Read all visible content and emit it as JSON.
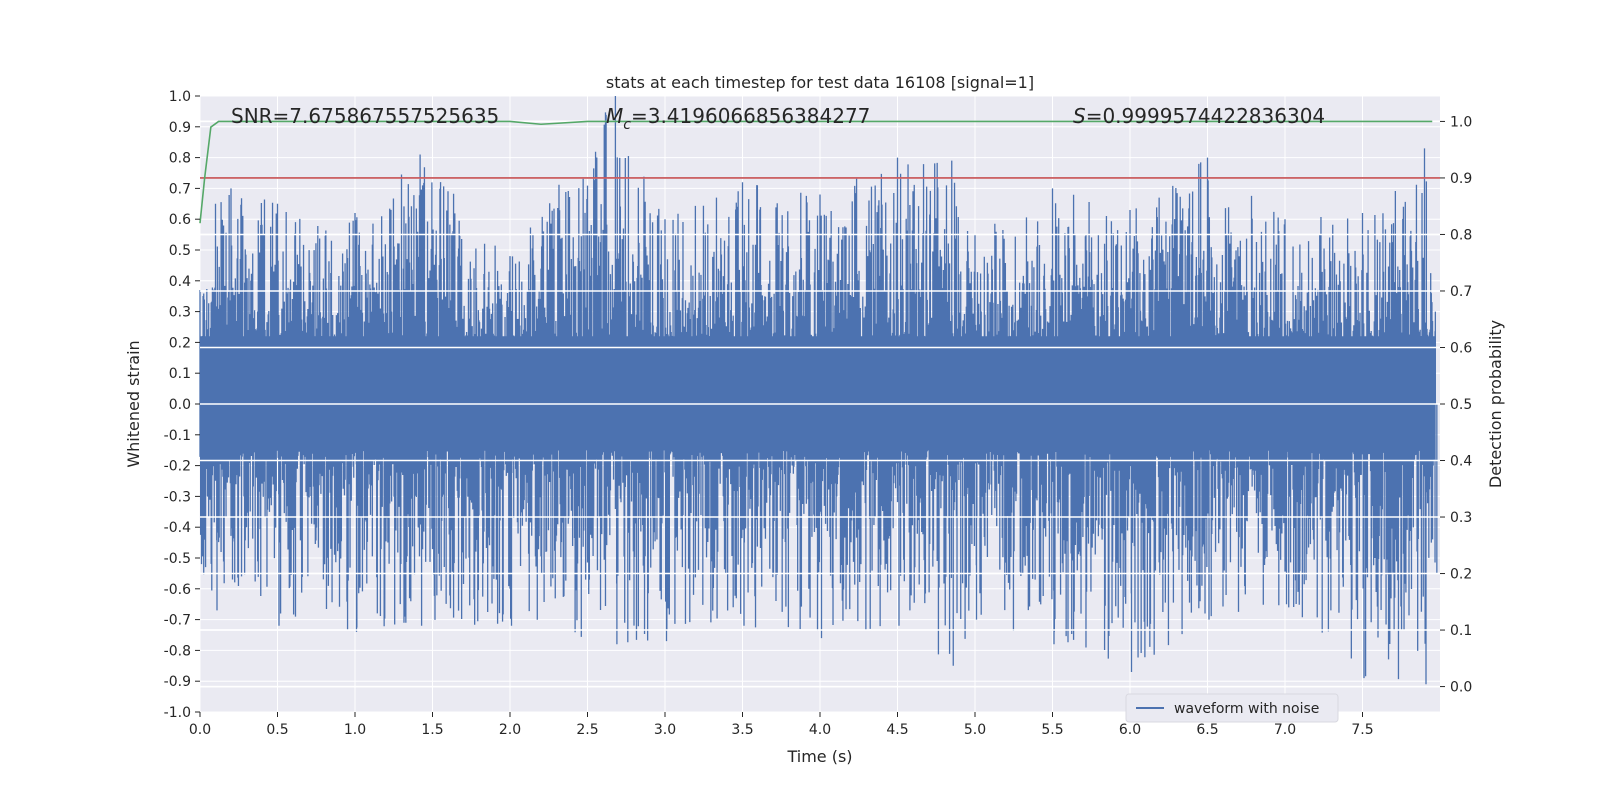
{
  "chart_data": {
    "type": "line",
    "title": "stats at each timestep for test data 16108 [signal=1]",
    "xlabel": "Time (s)",
    "ylabel": "Whitened strain",
    "y2label": "Detection probability",
    "xlim": [
      0.0,
      8.0
    ],
    "ylim": [
      -1.0,
      1.0
    ],
    "y2lim": [
      -0.045,
      1.045
    ],
    "grid": true,
    "legend_position": "lower-right",
    "x_ticks": [
      "0.0",
      "0.5",
      "1.0",
      "1.5",
      "2.0",
      "2.5",
      "3.0",
      "3.5",
      "4.0",
      "4.5",
      "5.0",
      "5.5",
      "6.0",
      "6.5",
      "7.0",
      "7.5"
    ],
    "y_ticks": [
      "1.0",
      "0.9",
      "0.8",
      "0.7",
      "0.6",
      "0.5",
      "0.4",
      "0.3",
      "0.2",
      "0.1",
      "0.0",
      "-0.1",
      "-0.2",
      "-0.3",
      "-0.4",
      "-0.5",
      "-0.6",
      "-0.7",
      "-0.8",
      "-0.9",
      "-1.0"
    ],
    "y2_ticks": [
      "1.0",
      "0.9",
      "0.8",
      "0.7",
      "0.6",
      "0.5",
      "0.4",
      "0.3",
      "0.2",
      "0.1",
      "0.0"
    ],
    "annotations": {
      "snr": "SNR=7.675867557525635",
      "mc_symbol": "M",
      "mc_sub": "c",
      "mc_value": "=3.4196066856384277",
      "s_symbol": "S",
      "s_value": "=0.9999574422836304"
    },
    "series": [
      {
        "name": "waveform with noise",
        "axis": "left",
        "color": "#4c72b0",
        "envelope_description_points": {
          "x": [
            0.0,
            0.1,
            0.2,
            0.5,
            1.0,
            1.42,
            2.0,
            2.68,
            3.0,
            3.5,
            4.0,
            4.5,
            4.85,
            5.0,
            5.5,
            6.0,
            6.5,
            7.0,
            7.5,
            7.9,
            7.97
          ],
          "max": [
            0.37,
            0.65,
            0.7,
            0.65,
            0.62,
            0.81,
            0.48,
            1.0,
            0.6,
            0.72,
            0.68,
            0.8,
            0.79,
            0.55,
            0.7,
            0.63,
            0.8,
            0.6,
            0.62,
            0.83,
            0.3
          ],
          "min": [
            -0.52,
            -0.67,
            -0.57,
            -0.72,
            -0.74,
            -0.72,
            -0.72,
            -0.78,
            -0.77,
            -0.72,
            -0.76,
            -0.72,
            -0.85,
            -0.7,
            -0.78,
            -0.87,
            -0.7,
            -0.65,
            -0.89,
            -0.91,
            -0.55
          ]
        }
      },
      {
        "name": "threshold",
        "axis": "right",
        "color": "#c44e52",
        "x": [
          0.0,
          8.0
        ],
        "y": [
          0.9,
          0.9
        ]
      },
      {
        "name": "detection probability",
        "axis": "right",
        "color": "#55a868",
        "x": [
          0.0,
          0.03,
          0.07,
          0.12,
          0.5,
          1.0,
          1.5,
          2.0,
          2.2,
          2.5,
          3.0,
          4.0,
          5.0,
          6.0,
          7.0,
          7.95
        ],
        "y": [
          0.82,
          0.9,
          0.99,
          1.0,
          1.0,
          1.0,
          1.0,
          1.0,
          0.995,
          1.0,
          1.0,
          1.0,
          1.0,
          1.0,
          1.0,
          1.0
        ]
      }
    ]
  },
  "legend": {
    "label": "waveform with noise"
  },
  "colors": {
    "plot_background": "#eaeaf2",
    "grid": "#ffffff",
    "waveform": "#4c72b0",
    "threshold": "#c44e52",
    "probability": "#55a868"
  }
}
